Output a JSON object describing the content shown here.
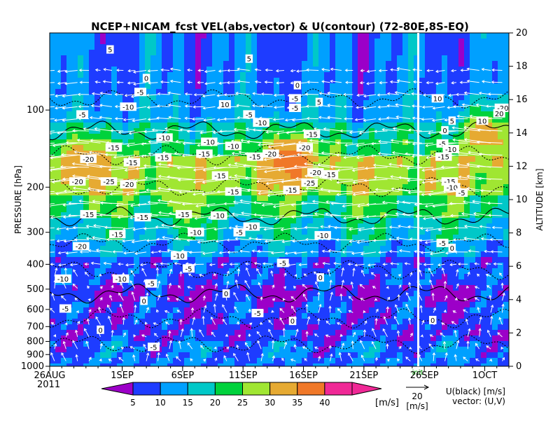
{
  "chart_data": {
    "type": "heatmap",
    "title": "NCEP+NICAM_fcst VEL(abs,vector) & U(contour)   (72-80E,8S-EQ)",
    "xlabel": "",
    "ylabel": "PRESSURE [hPa]",
    "ylabel_right": "ALTITUDE [km]",
    "x_start_label": "26AUG",
    "x_year_label": "2011",
    "x_tick_labels": [
      "26AUG",
      "1SEP",
      "6SEP",
      "11SEP",
      "16SEP",
      "21SEP",
      "26SEP",
      "1OCT"
    ],
    "x_tick_days": [
      0,
      6,
      11,
      16,
      21,
      26,
      31,
      36
    ],
    "x_range_days": [
      0,
      38
    ],
    "y_tick_labels": [
      "100",
      "200",
      "300",
      "400",
      "500",
      "600",
      "700",
      "800",
      "900",
      "1000"
    ],
    "y_tick_values": [
      100,
      200,
      300,
      400,
      500,
      600,
      700,
      800,
      900,
      1000
    ],
    "y_range_hpa": [
      1000,
      50
    ],
    "alt_tick_labels": [
      "0",
      "2",
      "4",
      "6",
      "8",
      "10",
      "12",
      "14",
      "16",
      "18",
      "20"
    ],
    "alt_tick_values": [
      0,
      2,
      4,
      6,
      8,
      10,
      12,
      14,
      16,
      18,
      20
    ],
    "forecast_marker_label": "init",
    "forecast_start_day": 30.5,
    "colorbar": {
      "levels": [
        "5",
        "10",
        "15",
        "20",
        "25",
        "30",
        "35",
        "40"
      ],
      "colors": [
        "#9c00c8",
        "#1e3cff",
        "#00a0ff",
        "#00c8c8",
        "#00d23c",
        "#a0e632",
        "#e6aa32",
        "#f07828",
        "#f02896"
      ],
      "unit": "[m/s]"
    },
    "vector_legend": {
      "value": "20",
      "unit": "[m/s]"
    },
    "legend_text": [
      "U(black) [m/s]",
      "vector: (U,V)"
    ],
    "bands": [
      {
        "p_top": 50,
        "p_bot": 85,
        "speed": 10
      },
      {
        "p_top": 85,
        "p_bot": 110,
        "speed": 13
      },
      {
        "p_top": 110,
        "p_bot": 130,
        "speed": 18
      },
      {
        "p_top": 130,
        "p_bot": 150,
        "speed": 22
      },
      {
        "p_top": 150,
        "p_bot": 210,
        "speed": 28
      },
      {
        "p_top": 210,
        "p_bot": 270,
        "speed": 22
      },
      {
        "p_top": 270,
        "p_bot": 330,
        "speed": 17
      },
      {
        "p_top": 330,
        "p_bot": 380,
        "speed": 13
      },
      {
        "p_top": 380,
        "p_bot": 470,
        "speed": 8
      },
      {
        "p_top": 470,
        "p_bot": 560,
        "speed": 5
      },
      {
        "p_top": 560,
        "p_bot": 800,
        "speed": 7
      },
      {
        "p_top": 800,
        "p_bot": 1000,
        "speed": 10
      }
    ],
    "speed_cores": [
      {
        "day": 3,
        "p": 160,
        "speed": 34
      },
      {
        "day": 20,
        "p": 155,
        "speed": 38
      },
      {
        "day": 36,
        "p": 125,
        "speed": 33
      },
      {
        "day": 11,
        "p": 230,
        "speed": 27
      }
    ],
    "contour_labels": [
      {
        "day": 5,
        "p": 58,
        "t": "5"
      },
      {
        "day": 8,
        "p": 75,
        "t": "0"
      },
      {
        "day": 7.5,
        "p": 85,
        "t": "-5"
      },
      {
        "day": 16.5,
        "p": 63,
        "t": "5"
      },
      {
        "day": 20.5,
        "p": 80,
        "t": "0"
      },
      {
        "day": 20.3,
        "p": 90,
        "t": "-5"
      },
      {
        "day": 22.3,
        "p": 93,
        "t": "5"
      },
      {
        "day": 20.3,
        "p": 98,
        "t": "-5"
      },
      {
        "day": 2.7,
        "p": 104,
        "t": "-5"
      },
      {
        "day": 6.5,
        "p": 97,
        "t": "-10"
      },
      {
        "day": 14.5,
        "p": 95,
        "t": "10"
      },
      {
        "day": 16.5,
        "p": 104,
        "t": "-5"
      },
      {
        "day": 17.5,
        "p": 112,
        "t": "-10"
      },
      {
        "day": 9.5,
        "p": 128,
        "t": "-10"
      },
      {
        "day": 13.2,
        "p": 133,
        "t": "-10"
      },
      {
        "day": 15.2,
        "p": 138,
        "t": "-10"
      },
      {
        "day": 5.3,
        "p": 140,
        "t": "-15"
      },
      {
        "day": 3.2,
        "p": 155,
        "t": "-20"
      },
      {
        "day": 6.8,
        "p": 160,
        "t": "-15"
      },
      {
        "day": 9.4,
        "p": 153,
        "t": "-15"
      },
      {
        "day": 12.8,
        "p": 148,
        "t": "-15"
      },
      {
        "day": 17,
        "p": 152,
        "t": "-15"
      },
      {
        "day": 18.3,
        "p": 148,
        "t": "-20"
      },
      {
        "day": 21.7,
        "p": 124,
        "t": "-15"
      },
      {
        "day": 21.1,
        "p": 140,
        "t": "-20"
      },
      {
        "day": 22,
        "p": 175,
        "t": "-20"
      },
      {
        "day": 23.2,
        "p": 178,
        "t": "-15"
      },
      {
        "day": 14.1,
        "p": 180,
        "t": "-15"
      },
      {
        "day": 2.3,
        "p": 190,
        "t": "-20"
      },
      {
        "day": 4.9,
        "p": 190,
        "t": "-25"
      },
      {
        "day": 6.5,
        "p": 195,
        "t": "-20"
      },
      {
        "day": 21.5,
        "p": 192,
        "t": "-25"
      },
      {
        "day": 20,
        "p": 205,
        "t": "-15"
      },
      {
        "day": 15.2,
        "p": 208,
        "t": "-15"
      },
      {
        "day": 3.2,
        "p": 255,
        "t": "-15"
      },
      {
        "day": 11.1,
        "p": 255,
        "t": "-15"
      },
      {
        "day": 14,
        "p": 258,
        "t": "-10"
      },
      {
        "day": 7.7,
        "p": 262,
        "t": "-15"
      },
      {
        "day": 16.7,
        "p": 285,
        "t": "-10"
      },
      {
        "day": 5.6,
        "p": 305,
        "t": "-15"
      },
      {
        "day": 12.1,
        "p": 300,
        "t": "-10"
      },
      {
        "day": 15.7,
        "p": 300,
        "t": "-5"
      },
      {
        "day": 22.6,
        "p": 308,
        "t": "-10"
      },
      {
        "day": 2.6,
        "p": 340,
        "t": "-20"
      },
      {
        "day": 10.7,
        "p": 370,
        "t": "-10"
      },
      {
        "day": 19.3,
        "p": 395,
        "t": "-5"
      },
      {
        "day": 11.5,
        "p": 415,
        "t": "-5"
      },
      {
        "day": 1.1,
        "p": 455,
        "t": "-10"
      },
      {
        "day": 5.9,
        "p": 455,
        "t": "-10"
      },
      {
        "day": 8.4,
        "p": 475,
        "t": "-5"
      },
      {
        "day": 22.4,
        "p": 450,
        "t": "0"
      },
      {
        "day": 14.6,
        "p": 520,
        "t": "0"
      },
      {
        "day": 7.8,
        "p": 555,
        "t": "0"
      },
      {
        "day": 1.3,
        "p": 595,
        "t": "-5"
      },
      {
        "day": 17.2,
        "p": 620,
        "t": "-5"
      },
      {
        "day": 20.1,
        "p": 665,
        "t": "0"
      },
      {
        "day": 4.2,
        "p": 720,
        "t": "0"
      },
      {
        "day": 8.6,
        "p": 840,
        "t": "-5"
      },
      {
        "day": 32.1,
        "p": 90,
        "t": "10"
      },
      {
        "day": 33.3,
        "p": 110,
        "t": "5"
      },
      {
        "day": 32.7,
        "p": 120,
        "t": "0"
      },
      {
        "day": 35.8,
        "p": 110,
        "t": "10"
      },
      {
        "day": 37.5,
        "p": 98,
        "t": "-20"
      },
      {
        "day": 37.2,
        "p": 103,
        "t": "20"
      },
      {
        "day": 32.5,
        "p": 135,
        "t": "-5"
      },
      {
        "day": 33.2,
        "p": 142,
        "t": "-10"
      },
      {
        "day": 32.6,
        "p": 152,
        "t": "-15"
      },
      {
        "day": 33.1,
        "p": 190,
        "t": "-15"
      },
      {
        "day": 33.3,
        "p": 200,
        "t": "-10"
      },
      {
        "day": 34.1,
        "p": 210,
        "t": "-5"
      },
      {
        "day": 32.5,
        "p": 330,
        "t": "-5"
      },
      {
        "day": 33.3,
        "p": 345,
        "t": "0"
      },
      {
        "day": 31.7,
        "p": 660,
        "t": "0"
      }
    ],
    "grid": false
  }
}
